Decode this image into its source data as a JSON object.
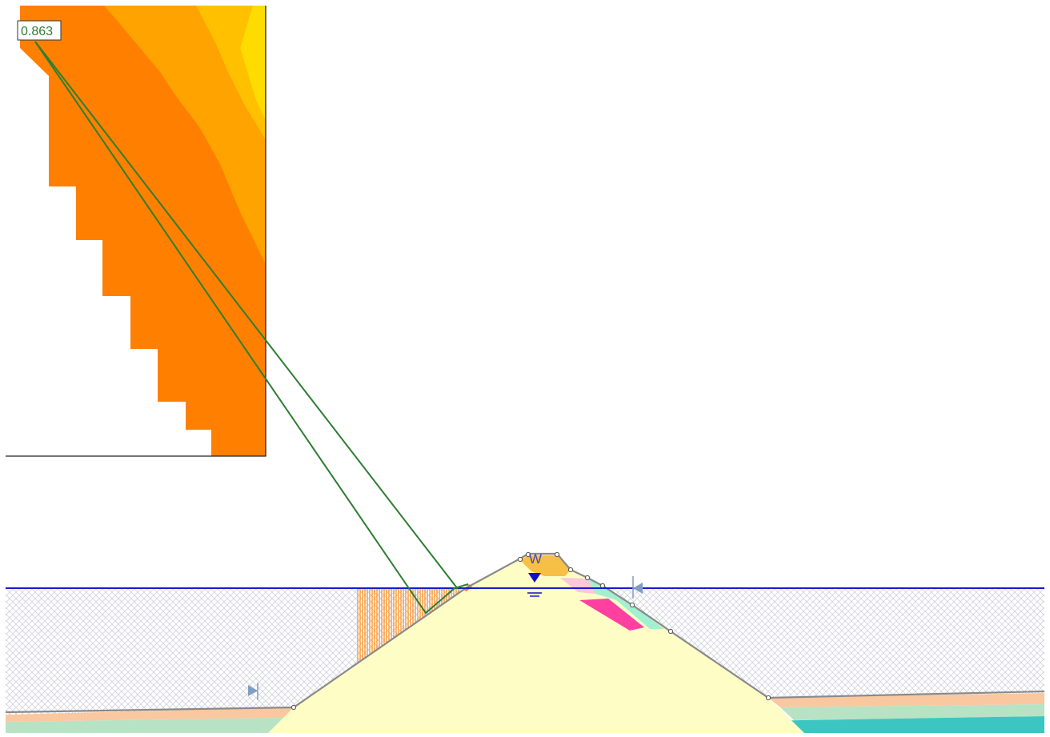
{
  "fos_label": "0.863",
  "water_label": "W",
  "colors": {
    "background": "#ffffff",
    "water_line": "#1a1ad0",
    "water_marker": "#1010c8",
    "slip_surface": "#2e7d32",
    "fos_label_text": "#2e7d32",
    "ground_line": "#8a8a8a",
    "dam_fill": "#fffdc6",
    "hatch": "#c9c9d6",
    "inset_border": "#222222",
    "inset_band_1": "#ff8000",
    "inset_band_2": "#ffa300",
    "inset_band_3": "#ffc000",
    "inset_band_4": "#ffdc00",
    "slice_color": "#ff8a10",
    "layer_peach": "#f9c8a0",
    "layer_mint": "#b8e2c4",
    "layer_teal": "#3cc6c2",
    "crest_orange": "#f6c046",
    "pink_band": "#ff40a0",
    "light_pink": "#ffc7d9",
    "aqua_band": "#a2f0d2",
    "limit_marker": "#7f9ec4"
  },
  "icons": {
    "water_table_marker": "inverted-triangle-icon",
    "left_limit_marker": "limit-flag-right-icon",
    "right_limit_marker": "limit-flag-left-icon"
  }
}
